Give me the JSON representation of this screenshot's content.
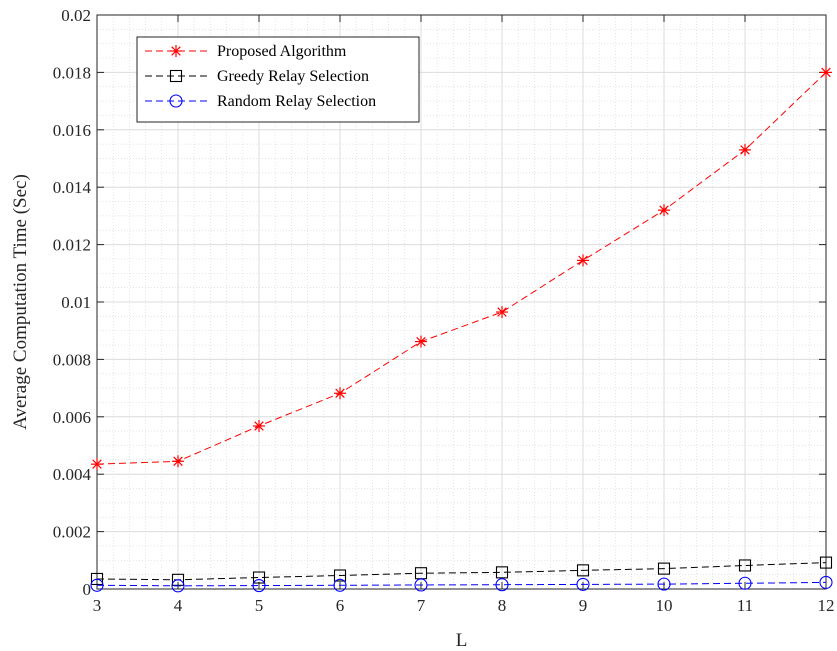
{
  "chart_data": {
    "type": "line",
    "title": "",
    "xlabel": "L",
    "ylabel": "Average Computation Time (Sec)",
    "xlim": [
      3,
      12
    ],
    "ylim": [
      0,
      0.02
    ],
    "x_ticks": [
      3,
      4,
      5,
      6,
      7,
      8,
      9,
      10,
      11,
      12
    ],
    "y_ticks": [
      0,
      0.002,
      0.004,
      0.006,
      0.008,
      0.01,
      0.012,
      0.014,
      0.016,
      0.018,
      0.02
    ],
    "y_tick_labels": [
      "0",
      "0.002",
      "0.004",
      "0.006",
      "0.008",
      "0.01",
      "0.012",
      "0.014",
      "0.016",
      "0.018",
      "0.02"
    ],
    "grid": true,
    "minor_grid": true,
    "legend_position": "top-left",
    "x": [
      3,
      4,
      5,
      6,
      7,
      8,
      9,
      10,
      11,
      12
    ],
    "series": [
      {
        "name": "Proposed Algorithm",
        "color": "#ff0000",
        "marker": "asterisk",
        "line_style": "dashed",
        "values": [
          0.00435,
          0.00445,
          0.00568,
          0.00682,
          0.00862,
          0.00965,
          0.01145,
          0.0132,
          0.0153,
          0.018
        ]
      },
      {
        "name": "Greedy Relay Selection",
        "color": "#000000",
        "marker": "square",
        "line_style": "dashed",
        "values": [
          0.00035,
          0.00032,
          0.0004,
          0.00047,
          0.00055,
          0.00058,
          0.00065,
          0.00071,
          0.00082,
          0.00092
        ]
      },
      {
        "name": "Random Relay Selection",
        "color": "#0000ff",
        "marker": "circle",
        "line_style": "dashed",
        "values": [
          0.00013,
          0.00011,
          0.00012,
          0.00013,
          0.00014,
          0.00015,
          0.00016,
          0.00017,
          0.0002,
          0.00023
        ]
      }
    ]
  }
}
